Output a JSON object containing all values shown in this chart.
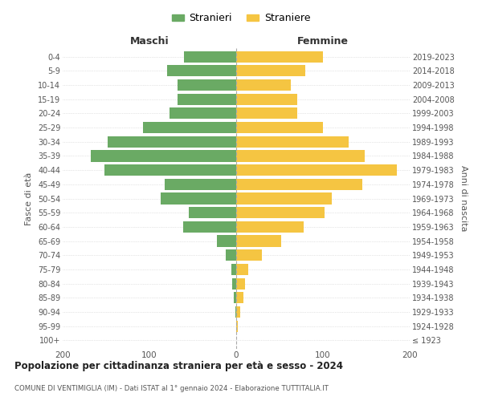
{
  "age_groups": [
    "100+",
    "95-99",
    "90-94",
    "85-89",
    "80-84",
    "75-79",
    "70-74",
    "65-69",
    "60-64",
    "55-59",
    "50-54",
    "45-49",
    "40-44",
    "35-39",
    "30-34",
    "25-29",
    "20-24",
    "15-19",
    "10-14",
    "5-9",
    "0-4"
  ],
  "birth_years": [
    "≤ 1923",
    "1924-1928",
    "1929-1933",
    "1934-1938",
    "1939-1943",
    "1944-1948",
    "1949-1953",
    "1954-1958",
    "1959-1963",
    "1964-1968",
    "1969-1973",
    "1974-1978",
    "1979-1983",
    "1984-1988",
    "1989-1993",
    "1994-1998",
    "1999-2003",
    "2004-2008",
    "2009-2013",
    "2014-2018",
    "2019-2023"
  ],
  "maschi": [
    0,
    0,
    1,
    3,
    5,
    6,
    12,
    22,
    61,
    55,
    87,
    82,
    152,
    168,
    148,
    107,
    77,
    68,
    68,
    80,
    60
  ],
  "femmine": [
    0,
    2,
    5,
    8,
    10,
    14,
    30,
    52,
    78,
    102,
    110,
    145,
    185,
    148,
    130,
    100,
    70,
    70,
    63,
    80,
    100
  ],
  "maschi_color": "#6aaa64",
  "femmine_color": "#f5c542",
  "background_color": "#ffffff",
  "grid_color": "#cccccc",
  "title": "Popolazione per cittadinanza straniera per età e sesso - 2024",
  "subtitle": "COMUNE DI VENTIMIGLIA (IM) - Dati ISTAT al 1° gennaio 2024 - Elaborazione TUTTITALIA.IT",
  "xlabel_left": "Maschi",
  "xlabel_right": "Femmine",
  "ylabel_left": "Fasce di età",
  "ylabel_right": "Anni di nascita",
  "legend_stranieri": "Stranieri",
  "legend_straniere": "Straniere",
  "xlim": 200,
  "bar_height": 0.8
}
